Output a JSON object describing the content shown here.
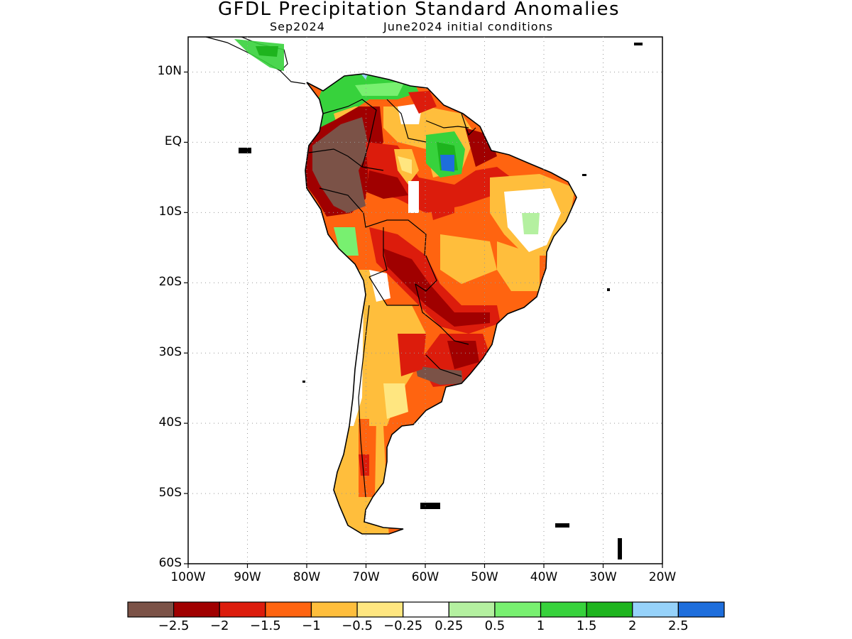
{
  "header": {
    "title": "GFDL Precipitation Standard Anomalies",
    "valid_month": "Sep2024",
    "initial_conditions": "June2024 initial conditions"
  },
  "map": {
    "lon_range": [
      -100,
      -20
    ],
    "lat_range": [
      -60,
      15
    ],
    "grid": true,
    "lat_ticks": [
      {
        "value": 10,
        "label": "10N"
      },
      {
        "value": 0,
        "label": "EQ"
      },
      {
        "value": -10,
        "label": "10S"
      },
      {
        "value": -20,
        "label": "20S"
      },
      {
        "value": -30,
        "label": "30S"
      },
      {
        "value": -40,
        "label": "40S"
      },
      {
        "value": -50,
        "label": "50S"
      },
      {
        "value": -60,
        "label": "60S"
      }
    ],
    "lon_ticks": [
      {
        "value": -100,
        "label": "100W"
      },
      {
        "value": -90,
        "label": "90W"
      },
      {
        "value": -80,
        "label": "80W"
      },
      {
        "value": -70,
        "label": "70W"
      },
      {
        "value": -60,
        "label": "60W"
      },
      {
        "value": -50,
        "label": "50W"
      },
      {
        "value": -40,
        "label": "40W"
      },
      {
        "value": -30,
        "label": "30W"
      },
      {
        "value": -20,
        "label": "20W"
      }
    ]
  },
  "colorbar": {
    "colors": [
      "#7b5247",
      "#a00000",
      "#dc1c0c",
      "#ff6410",
      "#ffbe3c",
      "#ffe680",
      "#ffffff",
      "#b4f0a0",
      "#78f070",
      "#37d23c",
      "#1eb41e",
      "#96d2fa",
      "#1e6edc"
    ],
    "labels": [
      "-2.5",
      "-2",
      "-1.5",
      "-1",
      "-0.5",
      "-0.25",
      "0.25",
      "0.5",
      "1",
      "1.5",
      "2",
      "2.5"
    ]
  }
}
